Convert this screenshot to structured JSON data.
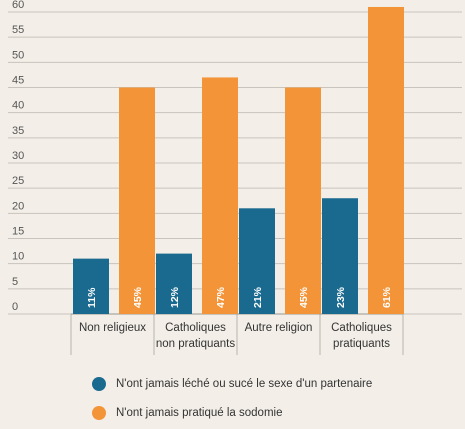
{
  "chart_data": {
    "type": "bar",
    "title": "",
    "xlabel": "",
    "ylabel": "",
    "ylim": [
      0,
      60
    ],
    "yticks": [
      0,
      5,
      10,
      15,
      20,
      25,
      30,
      35,
      40,
      45,
      50,
      55,
      60
    ],
    "grid": true,
    "categories": [
      [
        "Non religieux"
      ],
      [
        "Catholiques",
        "non pratiquants"
      ],
      [
        "Autre religion"
      ],
      [
        "Catholiques",
        "pratiquants"
      ]
    ],
    "series": [
      {
        "name": "N'ont jamais léché ou sucé le sexe d'un partenaire",
        "color": "#1a6a8f",
        "values": [
          11,
          12,
          21,
          23
        ],
        "labels": [
          "11%",
          "12%",
          "21%",
          "23%"
        ]
      },
      {
        "name": "N'ont jamais pratiqué la sodomie",
        "color": "#f39439",
        "values": [
          45,
          47,
          45,
          61
        ],
        "labels": [
          "45%",
          "47%",
          "45%",
          "61%"
        ]
      }
    ],
    "legend_position": "bottom"
  }
}
